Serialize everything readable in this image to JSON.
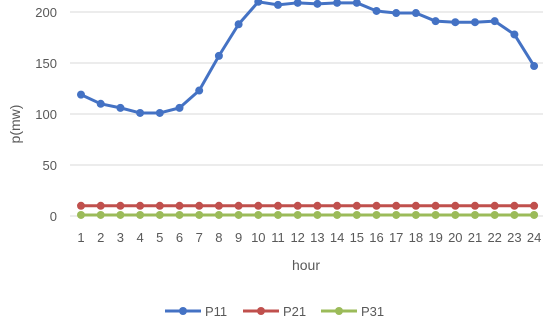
{
  "chart_data": {
    "type": "line",
    "title": "",
    "xlabel": "hour",
    "ylabel": "p(mw)",
    "ylim": [
      0,
      210
    ],
    "yticks": [
      0,
      50,
      100,
      150,
      200
    ],
    "grid": true,
    "legend_position": "bottom",
    "categories": [
      "1",
      "2",
      "3",
      "4",
      "5",
      "6",
      "7",
      "8",
      "9",
      "10",
      "11",
      "12",
      "13",
      "14",
      "15",
      "16",
      "17",
      "18",
      "19",
      "20",
      "21",
      "22",
      "23",
      "24"
    ],
    "series": [
      {
        "name": "P11",
        "color": "#4472c4",
        "values": [
          119,
          110,
          106,
          101,
          101,
          106,
          123,
          157,
          188,
          210,
          207,
          209,
          208,
          209,
          209,
          201,
          199,
          199,
          191,
          190,
          190,
          191,
          178,
          147
        ]
      },
      {
        "name": "P21",
        "color": "#c0504d",
        "values": [
          10,
          10,
          10,
          10,
          10,
          10,
          10,
          10,
          10,
          10,
          10,
          10,
          10,
          10,
          10,
          10,
          10,
          10,
          10,
          10,
          10,
          10,
          10,
          10
        ]
      },
      {
        "name": "P31",
        "color": "#9bbb59",
        "values": [
          1,
          1,
          1,
          1,
          1,
          1,
          1,
          1,
          1,
          1,
          1,
          1,
          1,
          1,
          1,
          1,
          1,
          1,
          1,
          1,
          1,
          1,
          1,
          1
        ]
      }
    ]
  }
}
